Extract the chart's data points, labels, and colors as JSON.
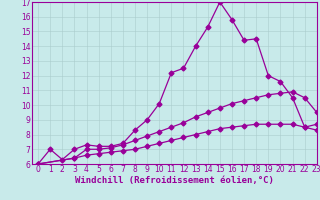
{
  "xlabel": "Windchill (Refroidissement éolien,°C)",
  "ylabel": "",
  "xlim": [
    -0.5,
    23
  ],
  "ylim": [
    6,
    17
  ],
  "yticks": [
    6,
    7,
    8,
    9,
    10,
    11,
    12,
    13,
    14,
    15,
    16,
    17
  ],
  "xticks": [
    0,
    1,
    2,
    3,
    4,
    5,
    6,
    7,
    8,
    9,
    10,
    11,
    12,
    13,
    14,
    15,
    16,
    17,
    18,
    19,
    20,
    21,
    22,
    23
  ],
  "color": "#990099",
  "bg_color": "#c8eaea",
  "grid_color": "#aacccc",
  "curve1_x": [
    0,
    1,
    2,
    3,
    4,
    5,
    6,
    7,
    8,
    9,
    10,
    11,
    12,
    13,
    14,
    15,
    16,
    17,
    18,
    19,
    20,
    21,
    22,
    23
  ],
  "curve1_y": [
    6.0,
    7.0,
    6.3,
    7.0,
    7.3,
    7.2,
    7.2,
    7.4,
    8.3,
    9.0,
    10.1,
    12.2,
    12.5,
    14.0,
    15.3,
    17.0,
    15.8,
    14.4,
    14.5,
    12.0,
    11.6,
    10.5,
    8.5,
    8.7
  ],
  "curve2_x": [
    0,
    3,
    4,
    5,
    6,
    7,
    8,
    9,
    10,
    11,
    12,
    13,
    14,
    15,
    16,
    17,
    18,
    19,
    20,
    21,
    22,
    23
  ],
  "curve2_y": [
    6.0,
    6.4,
    7.0,
    7.0,
    7.1,
    7.3,
    7.6,
    7.9,
    8.2,
    8.5,
    8.8,
    9.2,
    9.5,
    9.8,
    10.1,
    10.3,
    10.5,
    10.7,
    10.8,
    10.9,
    10.5,
    9.5
  ],
  "curve3_x": [
    0,
    3,
    4,
    5,
    6,
    7,
    8,
    9,
    10,
    11,
    12,
    13,
    14,
    15,
    16,
    17,
    18,
    19,
    20,
    21,
    22,
    23
  ],
  "curve3_y": [
    6.0,
    6.4,
    6.6,
    6.7,
    6.8,
    6.9,
    7.0,
    7.2,
    7.4,
    7.6,
    7.8,
    8.0,
    8.2,
    8.4,
    8.5,
    8.6,
    8.7,
    8.7,
    8.7,
    8.7,
    8.5,
    8.3
  ],
  "marker": "D",
  "markersize": 2.5,
  "linewidth": 0.9,
  "tick_fontsize": 5.5,
  "xlabel_fontsize": 6.5
}
